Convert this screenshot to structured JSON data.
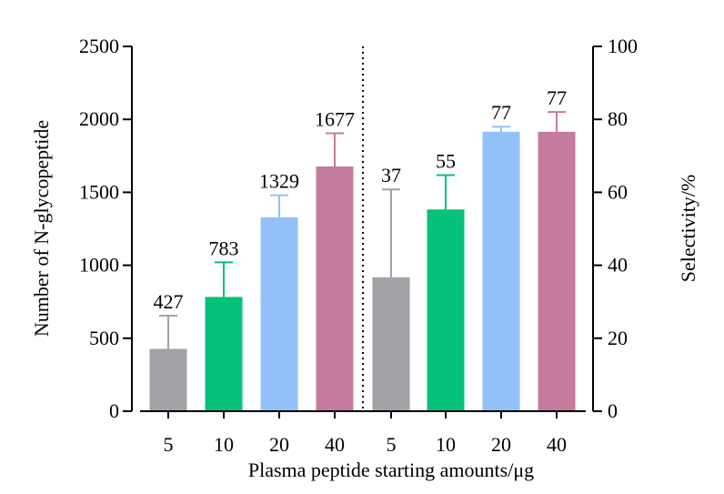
{
  "chart_data": {
    "type": "bar",
    "title": "",
    "xlabel": "Plasma peptide starting amounts/μg",
    "ylabel": "Number of N-glycopeptide",
    "y2label": "Selectivity/%",
    "ylim": [
      0,
      2500
    ],
    "y2lim": [
      0,
      100
    ],
    "yticks": [
      0,
      500,
      1000,
      1500,
      2000,
      2500
    ],
    "y2ticks": [
      0,
      20,
      40,
      60,
      80,
      100
    ],
    "grid": false,
    "legend": "none",
    "divider": "dotted vertical line between the two groups",
    "groups": [
      {
        "axis": "left",
        "categories": [
          "5",
          "10",
          "20",
          "40"
        ],
        "values": [
          427,
          783,
          1329,
          1677
        ],
        "error_upper": [
          655,
          1020,
          1480,
          1905
        ],
        "labels": [
          "427",
          "783",
          "1329",
          "1677"
        ],
        "colors": [
          "#a2a2a6",
          "#05c17a",
          "#92c1f7",
          "#c47b9e"
        ]
      },
      {
        "axis": "right",
        "categories": [
          "5",
          "10",
          "20",
          "40"
        ],
        "values": [
          36.7,
          55.3,
          76.6,
          76.6
        ],
        "error_upper": [
          60.8,
          64.7,
          78,
          82
        ],
        "labels": [
          "37",
          "55",
          "77",
          "77"
        ],
        "colors": [
          "#a2a2a6",
          "#05c17a",
          "#92c1f7",
          "#c47b9e"
        ]
      }
    ]
  }
}
